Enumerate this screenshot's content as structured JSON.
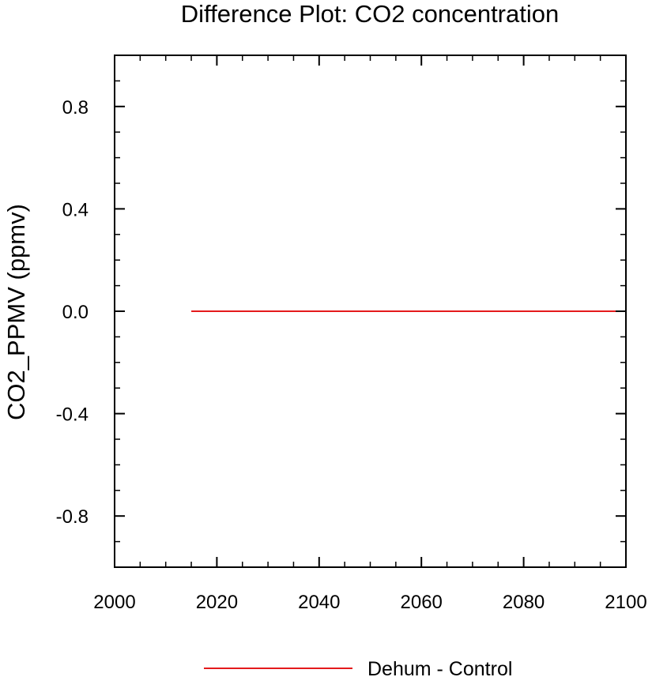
{
  "chart_data": {
    "type": "line",
    "title": "Difference Plot: CO2 concentration",
    "xlabel": "",
    "ylabel": "CO2_PPMV  (ppmv)",
    "xlim": [
      2000,
      2100
    ],
    "ylim": [
      -1.0,
      1.0
    ],
    "xticks": [
      2000,
      2020,
      2040,
      2060,
      2080,
      2100
    ],
    "xtick_labels": [
      "2000",
      "2020",
      "2040",
      "2060",
      "2080",
      "2100"
    ],
    "yticks": [
      -0.8,
      -0.4,
      0.0,
      0.4,
      0.8
    ],
    "ytick_labels": [
      "-0.8",
      "-0.4",
      "0.0",
      "0.4",
      "0.8"
    ],
    "grid": false,
    "legend_position": "bottom",
    "series": [
      {
        "name": "Dehum - Control",
        "color": "#e41a1c",
        "x": [
          2015,
          2100
        ],
        "y": [
          0.0,
          0.0
        ]
      }
    ]
  }
}
